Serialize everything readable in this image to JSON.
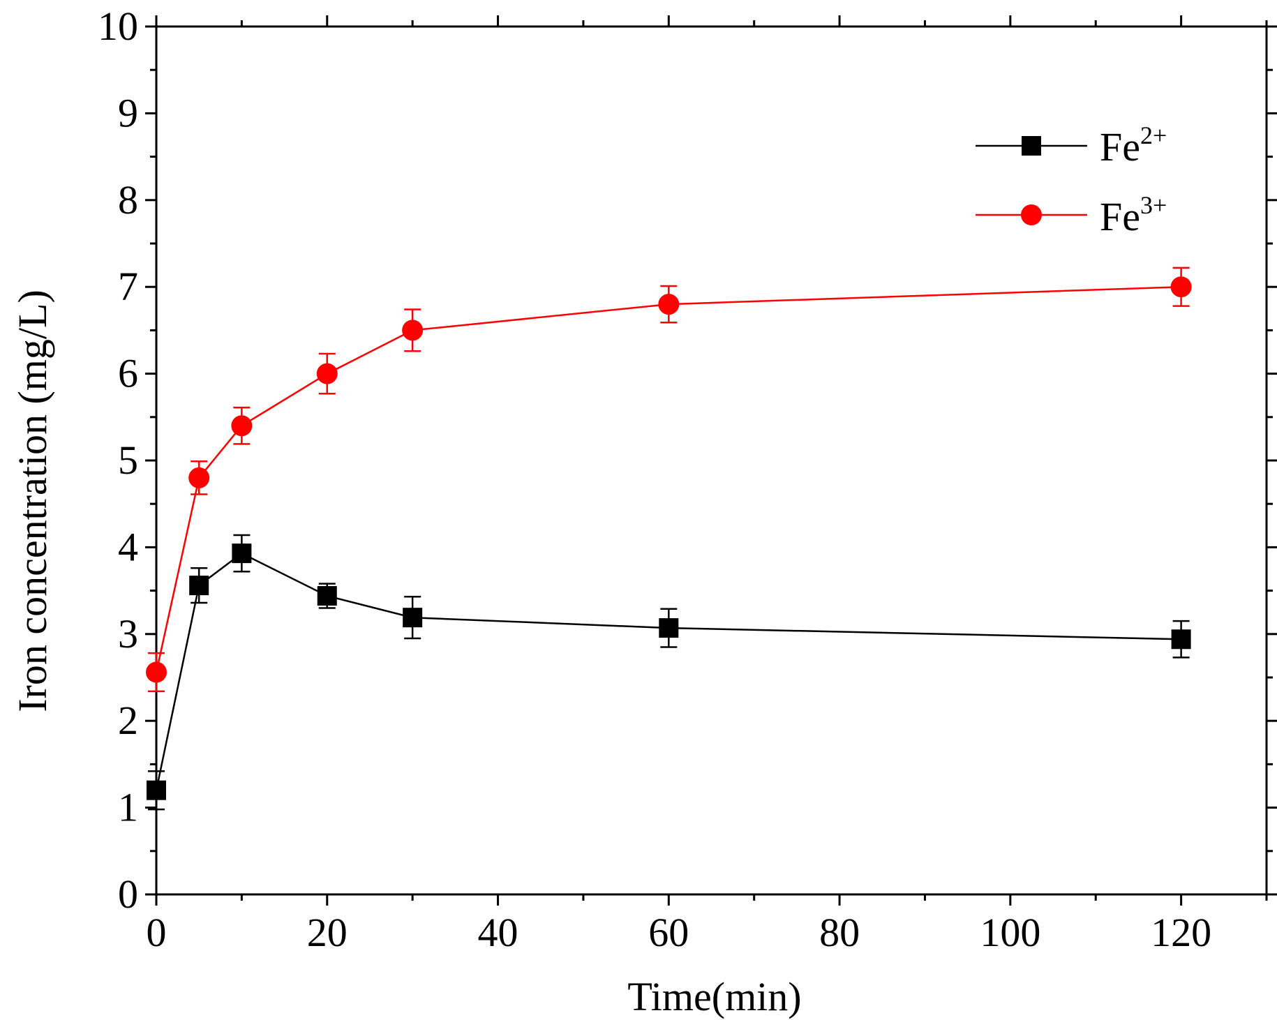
{
  "chart_data": {
    "type": "line",
    "title": "",
    "xlabel": "Time(min)",
    "ylabel": "Iron concentration (mg/L)",
    "xlim": [
      0,
      130
    ],
    "ylim": [
      0,
      10
    ],
    "xticks": [
      0,
      20,
      40,
      60,
      80,
      100,
      120
    ],
    "yticks": [
      0,
      1,
      2,
      3,
      4,
      5,
      6,
      7,
      8,
      9,
      10
    ],
    "grid": false,
    "legend_position": "top-right",
    "x": [
      0,
      5,
      10,
      20,
      30,
      60,
      120
    ],
    "series": [
      {
        "name": "Fe2+",
        "label_base": "Fe",
        "label_sup": "2+",
        "color": "#000000",
        "marker": "square",
        "values": [
          1.2,
          3.56,
          3.93,
          3.44,
          3.19,
          3.07,
          2.94
        ],
        "errors": [
          0.22,
          0.2,
          0.21,
          0.14,
          0.24,
          0.22,
          0.21
        ]
      },
      {
        "name": "Fe3+",
        "label_base": "Fe",
        "label_sup": "3+",
        "color": "#ff0000",
        "marker": "circle",
        "values": [
          2.56,
          4.8,
          5.4,
          6.0,
          6.5,
          6.8,
          7.0
        ],
        "errors": [
          0.22,
          0.19,
          0.21,
          0.23,
          0.24,
          0.21,
          0.22
        ]
      }
    ]
  }
}
